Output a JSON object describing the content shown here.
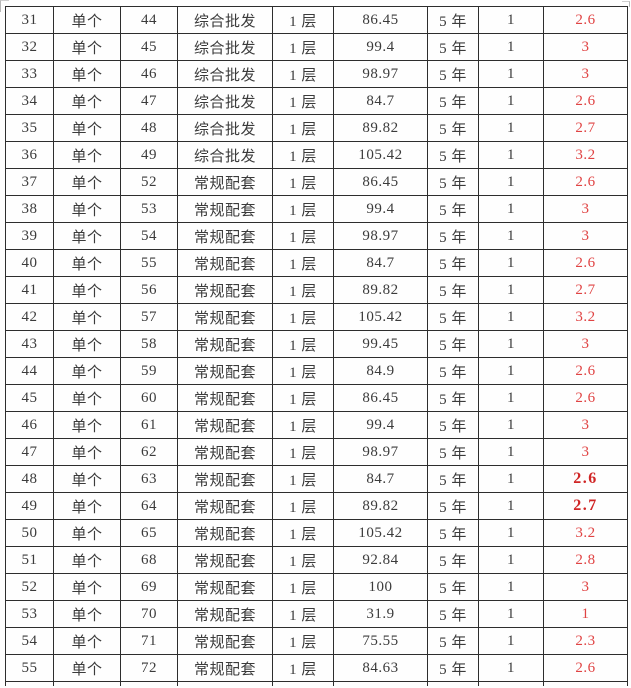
{
  "colors": {
    "border": "#2d2d2d",
    "text": "#3b3b3b",
    "rate_red": "#e04343",
    "rate_red_bold": "#d02525",
    "background": "#fefefe"
  },
  "table": {
    "rows": [
      {
        "no": "31",
        "type": "单个",
        "num": "44",
        "category": "综合批发",
        "floor": "1 层",
        "area": "86.45",
        "years": "5 年",
        "qty": "1",
        "rate": "2.6",
        "rate_bold": false
      },
      {
        "no": "32",
        "type": "单个",
        "num": "45",
        "category": "综合批发",
        "floor": "1 层",
        "area": "99.4",
        "years": "5 年",
        "qty": "1",
        "rate": "3",
        "rate_bold": false
      },
      {
        "no": "33",
        "type": "单个",
        "num": "46",
        "category": "综合批发",
        "floor": "1 层",
        "area": "98.97",
        "years": "5 年",
        "qty": "1",
        "rate": "3",
        "rate_bold": false
      },
      {
        "no": "34",
        "type": "单个",
        "num": "47",
        "category": "综合批发",
        "floor": "1 层",
        "area": "84.7",
        "years": "5 年",
        "qty": "1",
        "rate": "2.6",
        "rate_bold": false
      },
      {
        "no": "35",
        "type": "单个",
        "num": "48",
        "category": "综合批发",
        "floor": "1 层",
        "area": "89.82",
        "years": "5 年",
        "qty": "1",
        "rate": "2.7",
        "rate_bold": false
      },
      {
        "no": "36",
        "type": "单个",
        "num": "49",
        "category": "综合批发",
        "floor": "1 层",
        "area": "105.42",
        "years": "5 年",
        "qty": "1",
        "rate": "3.2",
        "rate_bold": false
      },
      {
        "no": "37",
        "type": "单个",
        "num": "52",
        "category": "常规配套",
        "floor": "1 层",
        "area": "86.45",
        "years": "5 年",
        "qty": "1",
        "rate": "2.6",
        "rate_bold": false
      },
      {
        "no": "38",
        "type": "单个",
        "num": "53",
        "category": "常规配套",
        "floor": "1 层",
        "area": "99.4",
        "years": "5 年",
        "qty": "1",
        "rate": "3",
        "rate_bold": false
      },
      {
        "no": "39",
        "type": "单个",
        "num": "54",
        "category": "常规配套",
        "floor": "1 层",
        "area": "98.97",
        "years": "5 年",
        "qty": "1",
        "rate": "3",
        "rate_bold": false
      },
      {
        "no": "40",
        "type": "单个",
        "num": "55",
        "category": "常规配套",
        "floor": "1 层",
        "area": "84.7",
        "years": "5 年",
        "qty": "1",
        "rate": "2.6",
        "rate_bold": false
      },
      {
        "no": "41",
        "type": "单个",
        "num": "56",
        "category": "常规配套",
        "floor": "1 层",
        "area": "89.82",
        "years": "5 年",
        "qty": "1",
        "rate": "2.7",
        "rate_bold": false
      },
      {
        "no": "42",
        "type": "单个",
        "num": "57",
        "category": "常规配套",
        "floor": "1 层",
        "area": "105.42",
        "years": "5 年",
        "qty": "1",
        "rate": "3.2",
        "rate_bold": false
      },
      {
        "no": "43",
        "type": "单个",
        "num": "58",
        "category": "常规配套",
        "floor": "1 层",
        "area": "99.45",
        "years": "5 年",
        "qty": "1",
        "rate": "3",
        "rate_bold": false
      },
      {
        "no": "44",
        "type": "单个",
        "num": "59",
        "category": "常规配套",
        "floor": "1 层",
        "area": "84.9",
        "years": "5 年",
        "qty": "1",
        "rate": "2.6",
        "rate_bold": false
      },
      {
        "no": "45",
        "type": "单个",
        "num": "60",
        "category": "常规配套",
        "floor": "1 层",
        "area": "86.45",
        "years": "5 年",
        "qty": "1",
        "rate": "2.6",
        "rate_bold": false
      },
      {
        "no": "46",
        "type": "单个",
        "num": "61",
        "category": "常规配套",
        "floor": "1 层",
        "area": "99.4",
        "years": "5 年",
        "qty": "1",
        "rate": "3",
        "rate_bold": false
      },
      {
        "no": "47",
        "type": "单个",
        "num": "62",
        "category": "常规配套",
        "floor": "1 层",
        "area": "98.97",
        "years": "5 年",
        "qty": "1",
        "rate": "3",
        "rate_bold": false
      },
      {
        "no": "48",
        "type": "单个",
        "num": "63",
        "category": "常规配套",
        "floor": "1 层",
        "area": "84.7",
        "years": "5 年",
        "qty": "1",
        "rate": "2.6",
        "rate_bold": true
      },
      {
        "no": "49",
        "type": "单个",
        "num": "64",
        "category": "常规配套",
        "floor": "1 层",
        "area": "89.82",
        "years": "5 年",
        "qty": "1",
        "rate": "2.7",
        "rate_bold": true
      },
      {
        "no": "50",
        "type": "单个",
        "num": "65",
        "category": "常规配套",
        "floor": "1 层",
        "area": "105.42",
        "years": "5 年",
        "qty": "1",
        "rate": "3.2",
        "rate_bold": false
      },
      {
        "no": "51",
        "type": "单个",
        "num": "68",
        "category": "常规配套",
        "floor": "1 层",
        "area": "92.84",
        "years": "5 年",
        "qty": "1",
        "rate": "2.8",
        "rate_bold": false
      },
      {
        "no": "52",
        "type": "单个",
        "num": "69",
        "category": "常规配套",
        "floor": "1 层",
        "area": "100",
        "years": "5 年",
        "qty": "1",
        "rate": "3",
        "rate_bold": false
      },
      {
        "no": "53",
        "type": "单个",
        "num": "70",
        "category": "常规配套",
        "floor": "1 层",
        "area": "31.9",
        "years": "5 年",
        "qty": "1",
        "rate": "1",
        "rate_bold": false
      },
      {
        "no": "54",
        "type": "单个",
        "num": "71",
        "category": "常规配套",
        "floor": "1 层",
        "area": "75.55",
        "years": "5 年",
        "qty": "1",
        "rate": "2.3",
        "rate_bold": false
      },
      {
        "no": "55",
        "type": "单个",
        "num": "72",
        "category": "常规配套",
        "floor": "1 层",
        "area": "84.63",
        "years": "5 年",
        "qty": "1",
        "rate": "2.6",
        "rate_bold": false
      }
    ]
  }
}
